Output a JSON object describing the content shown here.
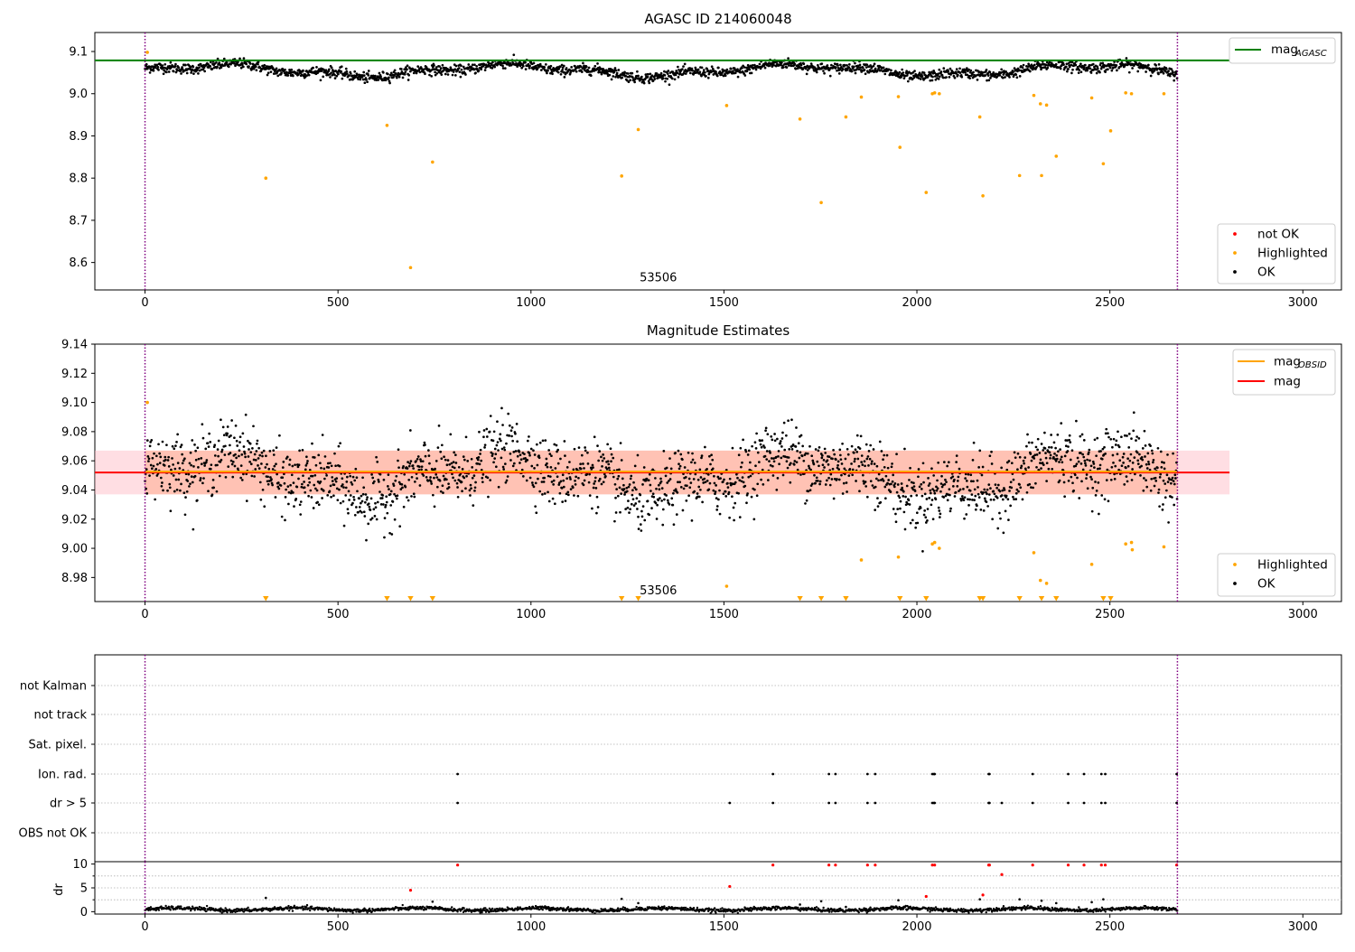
{
  "colors": {
    "ok": "#000000",
    "highlighted": "#ffa500",
    "not_ok": "#ff0000",
    "agasc_line": "#008000",
    "obsid_line": "#ffa500",
    "mag_line": "#ff0000",
    "mag_band": "#ffb6c1",
    "obsid_band": "#ffa07a",
    "obs_boundary": "#800080"
  },
  "chart_data": [
    {
      "type": "scatter",
      "title": "AGASC ID 214060048",
      "xlim": [
        -130,
        3100
      ],
      "ylim": [
        8.535,
        9.145
      ],
      "xticks": [
        0,
        500,
        1000,
        1500,
        2000,
        2500,
        3000
      ],
      "yticks": [
        8.6,
        8.7,
        8.8,
        8.9,
        9.0,
        9.1
      ],
      "ytick_labels": [
        "8.6",
        "8.7",
        "8.8",
        "8.9",
        "9.0",
        "9.1"
      ],
      "annotation": {
        "text": "53506",
        "x": 1330,
        "y": 8.555
      },
      "obs_boundaries": [
        0,
        2675
      ],
      "hline": {
        "name": "mag_AGASC",
        "y": 9.079
      },
      "highlighted_points": [
        [
          313,
          8.8
        ],
        [
          627,
          8.925
        ],
        [
          688,
          8.588
        ],
        [
          745,
          8.838
        ],
        [
          1235,
          8.805
        ],
        [
          1278,
          8.915
        ],
        [
          1507,
          8.972
        ],
        [
          1697,
          8.94
        ],
        [
          1752,
          8.742
        ],
        [
          1816,
          8.945
        ],
        [
          1856,
          8.992
        ],
        [
          1952,
          8.993
        ],
        [
          1956,
          8.873
        ],
        [
          2024,
          8.766
        ],
        [
          2040,
          9.0
        ],
        [
          2046,
          9.002
        ],
        [
          2058,
          9.0
        ],
        [
          2163,
          8.945
        ],
        [
          2171,
          8.758
        ],
        [
          2266,
          8.806
        ],
        [
          2303,
          8.996
        ],
        [
          2320,
          8.976
        ],
        [
          2323,
          8.806
        ],
        [
          2336,
          8.973
        ],
        [
          2361,
          8.852
        ],
        [
          2453,
          8.99
        ],
        [
          2483,
          8.834
        ],
        [
          2502,
          8.912
        ],
        [
          2541,
          9.002
        ],
        [
          2556,
          9.0
        ],
        [
          2640,
          9.0
        ],
        [
          6,
          9.098
        ]
      ],
      "ok_series": {
        "name": "OK",
        "x_range": [
          0,
          2675
        ],
        "mean": 9.055,
        "scatter": 0.006
      },
      "legend": [
        {
          "label": "not OK",
          "color": "#ff0000"
        },
        {
          "label": "Highlighted",
          "color": "#ffa500"
        },
        {
          "label": "OK",
          "color": "#000000"
        }
      ],
      "line_legend": [
        {
          "label": "mag",
          "sub": "AGASC",
          "color": "#008000"
        }
      ]
    },
    {
      "type": "scatter",
      "title": "Magnitude Estimates",
      "xlim": [
        -130,
        3100
      ],
      "ylim": [
        8.9635,
        9.14
      ],
      "xticks": [
        0,
        500,
        1000,
        1500,
        2000,
        2500,
        3000
      ],
      "yticks": [
        8.98,
        9.0,
        9.02,
        9.04,
        9.06,
        9.08,
        9.1,
        9.12,
        9.14
      ],
      "ytick_labels": [
        "8.98",
        "9.00",
        "9.02",
        "9.04",
        "9.06",
        "9.08",
        "9.10",
        "9.12",
        "9.14"
      ],
      "annotation": {
        "text": "53506",
        "x": 1330,
        "y": 8.9685
      },
      "obs_boundaries": [
        0,
        2675
      ],
      "mag": 9.052,
      "mag_band": [
        9.037,
        9.067
      ],
      "obsid_mag": 9.052,
      "obsid_band": [
        9.037,
        9.067
      ],
      "highlighted_points": [
        [
          6,
          9.1
        ],
        [
          1507,
          8.974
        ],
        [
          1856,
          8.992
        ],
        [
          1952,
          8.994
        ],
        [
          2040,
          9.003
        ],
        [
          2046,
          9.004
        ],
        [
          2058,
          9.0
        ],
        [
          2303,
          8.997
        ],
        [
          2320,
          8.978
        ],
        [
          2336,
          8.976
        ],
        [
          2453,
          8.989
        ],
        [
          2541,
          9.003
        ],
        [
          2556,
          9.004
        ],
        [
          2558,
          8.999
        ],
        [
          2640,
          9.001
        ]
      ],
      "clipped_x": [
        313,
        627,
        688,
        745,
        1235,
        1278,
        1697,
        1752,
        1816,
        1956,
        2024,
        2163,
        2171,
        2266,
        2323,
        2361,
        2483,
        2502
      ],
      "ok_series": {
        "name": "OK",
        "x_range": [
          0,
          2675
        ],
        "mean": 9.05,
        "scatter": 0.011
      },
      "legend": [
        {
          "label": "Highlighted",
          "color": "#ffa500"
        },
        {
          "label": "OK",
          "color": "#000000"
        }
      ],
      "line_legend": [
        {
          "label": "mag",
          "sub": "OBSID",
          "color": "#ffa500"
        },
        {
          "label": "mag",
          "sub": "",
          "color": "#ff0000"
        }
      ]
    },
    {
      "type": "scatter",
      "title": "",
      "xlim": [
        -130,
        3100
      ],
      "categories": [
        "not Kalman",
        "not track",
        "Sat. pixel.",
        "Ion. rad.",
        "dr > 5",
        "OBS not OK"
      ],
      "obs_boundaries": [
        0,
        2675
      ],
      "flag_points": {
        "Ion. rad.": [
          810,
          1627,
          1772,
          1789,
          1872,
          1892,
          2040,
          2044,
          2046,
          2186,
          2188,
          2300,
          2392,
          2433,
          2478,
          2488,
          2673
        ],
        "dr > 5": [
          810,
          1515,
          1627,
          1772,
          1789,
          1872,
          1892,
          2040,
          2044,
          2046,
          2186,
          2188,
          2220,
          2300,
          2392,
          2433,
          2478,
          2488,
          2673
        ]
      }
    },
    {
      "type": "scatter",
      "title": "",
      "ylabel": "dr",
      "xlim": [
        -130,
        3100
      ],
      "ylim": [
        -0.5,
        10.5
      ],
      "xticks": [
        0,
        500,
        1000,
        1500,
        2000,
        2500,
        3000
      ],
      "yticks": [
        0,
        5,
        10
      ],
      "ytick_labels": [
        "0",
        "5",
        "10"
      ],
      "obs_boundaries": [
        0,
        2675
      ],
      "ok_points": [
        [
          313,
          2.9
        ],
        [
          745,
          2.1
        ],
        [
          1235,
          2.7
        ],
        [
          1278,
          1.8
        ],
        [
          1697,
          1.5
        ],
        [
          1752,
          2.2
        ],
        [
          1952,
          2.4
        ],
        [
          2163,
          2.6
        ],
        [
          2266,
          2.6
        ],
        [
          2323,
          2.3
        ],
        [
          2361,
          1.8
        ],
        [
          2453,
          2.0
        ],
        [
          2483,
          2.6
        ],
        [
          1816,
          1.0
        ]
      ],
      "not_ok_points": [
        [
          688,
          4.5
        ],
        [
          810,
          9.8
        ],
        [
          1515,
          5.3
        ],
        [
          1627,
          9.8
        ],
        [
          1772,
          9.8
        ],
        [
          1789,
          9.8
        ],
        [
          1872,
          9.8
        ],
        [
          1892,
          9.8
        ],
        [
          2024,
          3.2
        ],
        [
          2040,
          9.8
        ],
        [
          2046,
          9.8
        ],
        [
          2171,
          3.5
        ],
        [
          2186,
          9.8
        ],
        [
          2188,
          9.8
        ],
        [
          2220,
          7.8
        ],
        [
          2300,
          9.8
        ],
        [
          2392,
          9.8
        ],
        [
          2433,
          9.8
        ],
        [
          2478,
          9.8
        ],
        [
          2488,
          9.8
        ],
        [
          2673,
          9.8
        ]
      ],
      "baseline": {
        "x_range": [
          0,
          2675
        ],
        "mean": 0.5,
        "scatter": 0.2
      }
    }
  ]
}
